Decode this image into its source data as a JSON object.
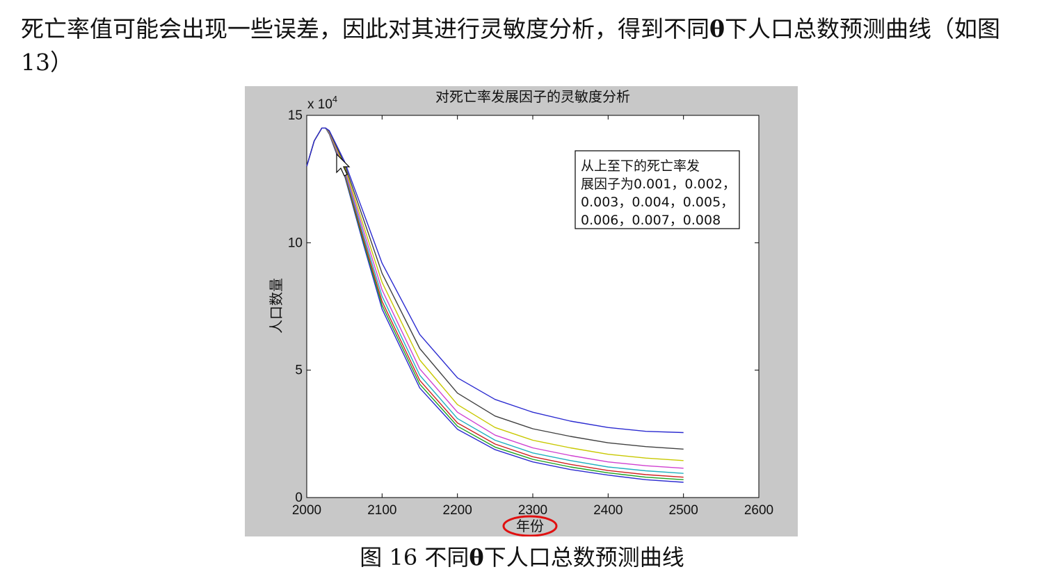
{
  "document": {
    "paragraph": {
      "before_theta": "死亡率值可能会出现一些误差，因此对其进行灵敏度分析，得到不同",
      "theta": "θ",
      "after_theta": "下人口总数预测曲线（如图 13）"
    },
    "caption": {
      "prefix": "图  16  不同",
      "theta": "θ",
      "suffix": "下人口总数预测曲线"
    }
  },
  "chart_data": {
    "type": "line",
    "title": "对死亡率发展因子的灵敏度分析",
    "xlabel": "年份",
    "ylabel": "人口数量",
    "y_multiplier_label": "x 10",
    "y_multiplier_exponent": "4",
    "xlim": [
      2000,
      2600
    ],
    "ylim": [
      0,
      150000
    ],
    "x_ticks": [
      "2000",
      "2100",
      "2200",
      "2300",
      "2400",
      "2500",
      "2600"
    ],
    "y_ticks": [
      "0",
      "5",
      "10",
      "15"
    ],
    "legend": {
      "lines": [
        "从上至下的死亡率发",
        "展因子为0.001，0.002，",
        "0.003，0.004，0.005，",
        "0.006，0.007，0.008"
      ],
      "placement": "top-right"
    },
    "x": [
      2000,
      2010,
      2020,
      2025,
      2030,
      2050,
      2075,
      2100,
      2150,
      2200,
      2250,
      2300,
      2350,
      2400,
      2450,
      2500
    ],
    "series": [
      {
        "color": "#2a2ad0",
        "values": [
          130000,
          140000,
          145000,
          145000,
          144000,
          132000,
          112000,
          92000,
          64000,
          47000,
          38500,
          33500,
          30000,
          27500,
          26000,
          25500
        ]
      },
      {
        "color": "#404040",
        "values": [
          130000,
          140000,
          145000,
          145000,
          143800,
          131000,
          109500,
          88000,
          58500,
          41000,
          32000,
          27000,
          24000,
          21500,
          20000,
          19000
        ]
      },
      {
        "color": "#c8c800",
        "values": [
          130000,
          140000,
          145000,
          145000,
          143600,
          130000,
          107000,
          84500,
          54000,
          36500,
          27500,
          22500,
          19500,
          17000,
          15500,
          14500
        ]
      },
      {
        "color": "#d040d0",
        "values": [
          130000,
          140000,
          145000,
          145000,
          143400,
          129000,
          105000,
          81500,
          50500,
          33500,
          24500,
          19500,
          16500,
          14000,
          12500,
          11500
        ]
      },
      {
        "color": "#20b0c0",
        "values": [
          130000,
          140000,
          145000,
          145000,
          143200,
          128200,
          103200,
          79000,
          48000,
          31000,
          22500,
          17500,
          14500,
          12000,
          10500,
          9500
        ]
      },
      {
        "color": "#d02020",
        "values": [
          130000,
          140000,
          145000,
          145000,
          143000,
          127500,
          101800,
          77000,
          46000,
          29300,
          21000,
          16000,
          13000,
          10600,
          9000,
          8000
        ]
      },
      {
        "color": "#20a020",
        "values": [
          130000,
          140000,
          145000,
          145000,
          142800,
          127000,
          100600,
          75500,
          44500,
          28000,
          19800,
          15000,
          12000,
          9700,
          8000,
          7000
        ]
      },
      {
        "color": "#2a2ad0",
        "values": [
          130000,
          140000,
          145000,
          145000,
          142600,
          126500,
          99600,
          74000,
          43000,
          26800,
          18800,
          14000,
          11000,
          8800,
          7000,
          6000
        ]
      }
    ]
  }
}
